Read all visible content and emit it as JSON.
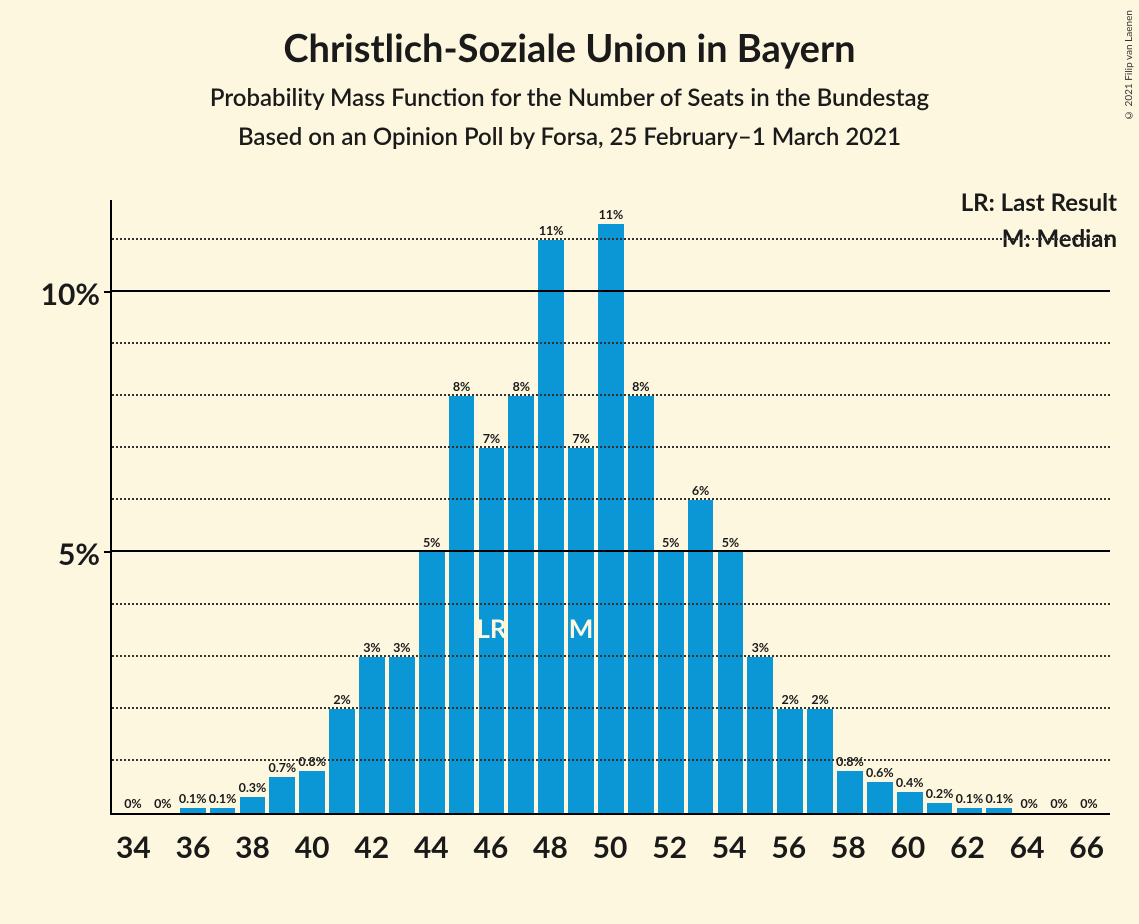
{
  "title": "Christlich-Soziale Union in Bayern",
  "subtitle1": "Probability Mass Function for the Number of Seats in the Bundestag",
  "subtitle2": "Based on an Opinion Poll by Forsa, 25 February–1 March 2021",
  "legend": {
    "lr": "LR: Last Result",
    "m": "M: Median"
  },
  "copyright": "© 2021 Filip van Laenen",
  "chart": {
    "type": "bar",
    "bar_color": "#0b97d5",
    "background_color": "#fdf7df",
    "grid_color": "#333333",
    "text_color": "#1a1a1a",
    "ylim_max": 11.8,
    "y_major_ticks": [
      5,
      10
    ],
    "y_major_labels": [
      "5%",
      "10%"
    ],
    "y_minor_step": 1,
    "x_values": [
      34,
      35,
      36,
      37,
      38,
      39,
      40,
      41,
      42,
      43,
      44,
      45,
      46,
      47,
      48,
      49,
      50,
      51,
      52,
      53,
      54,
      55,
      56,
      57,
      58,
      59,
      60,
      61,
      62,
      63,
      64,
      65,
      66
    ],
    "x_labels": [
      "34",
      "",
      "36",
      "",
      "38",
      "",
      "40",
      "",
      "42",
      "",
      "44",
      "",
      "46",
      "",
      "48",
      "",
      "50",
      "",
      "52",
      "",
      "54",
      "",
      "56",
      "",
      "58",
      "",
      "60",
      "",
      "62",
      "",
      "64",
      "",
      "66"
    ],
    "bars": [
      {
        "x": 34,
        "y": 0,
        "label": "0%"
      },
      {
        "x": 35,
        "y": 0,
        "label": "0%"
      },
      {
        "x": 36,
        "y": 0.1,
        "label": "0.1%"
      },
      {
        "x": 37,
        "y": 0.1,
        "label": "0.1%"
      },
      {
        "x": 38,
        "y": 0.3,
        "label": "0.3%"
      },
      {
        "x": 39,
        "y": 0.7,
        "label": "0.7%"
      },
      {
        "x": 40,
        "y": 0.8,
        "label": "0.8%"
      },
      {
        "x": 41,
        "y": 2,
        "label": "2%"
      },
      {
        "x": 42,
        "y": 3,
        "label": "3%"
      },
      {
        "x": 43,
        "y": 3,
        "label": "3%"
      },
      {
        "x": 44,
        "y": 5,
        "label": "5%"
      },
      {
        "x": 45,
        "y": 8,
        "label": "8%"
      },
      {
        "x": 46,
        "y": 7,
        "label": "7%"
      },
      {
        "x": 47,
        "y": 8,
        "label": "8%"
      },
      {
        "x": 48,
        "y": 11,
        "label": "11%"
      },
      {
        "x": 49,
        "y": 7,
        "label": "7%"
      },
      {
        "x": 50,
        "y": 11.3,
        "label": "11%"
      },
      {
        "x": 51,
        "y": 8,
        "label": "8%"
      },
      {
        "x": 52,
        "y": 5,
        "label": "5%"
      },
      {
        "x": 53,
        "y": 6,
        "label": "6%"
      },
      {
        "x": 54,
        "y": 5,
        "label": "5%"
      },
      {
        "x": 55,
        "y": 3,
        "label": "3%"
      },
      {
        "x": 56,
        "y": 2,
        "label": "2%"
      },
      {
        "x": 57,
        "y": 2,
        "label": "2%"
      },
      {
        "x": 58,
        "y": 0.8,
        "label": "0.8%"
      },
      {
        "x": 59,
        "y": 0.6,
        "label": "0.6%"
      },
      {
        "x": 60,
        "y": 0.4,
        "label": "0.4%"
      },
      {
        "x": 61,
        "y": 0.2,
        "label": "0.2%"
      },
      {
        "x": 62,
        "y": 0.1,
        "label": "0.1%"
      },
      {
        "x": 63,
        "y": 0.1,
        "label": "0.1%"
      },
      {
        "x": 64,
        "y": 0,
        "label": "0%"
      },
      {
        "x": 65,
        "y": 0,
        "label": "0%"
      },
      {
        "x": 66,
        "y": 0,
        "label": "0%"
      }
    ],
    "annotations": {
      "LR": {
        "x": 46,
        "text": "LR",
        "offset_top_pct": 45
      },
      "M": {
        "x": 49,
        "text": "M",
        "offset_top_pct": 45
      }
    }
  }
}
